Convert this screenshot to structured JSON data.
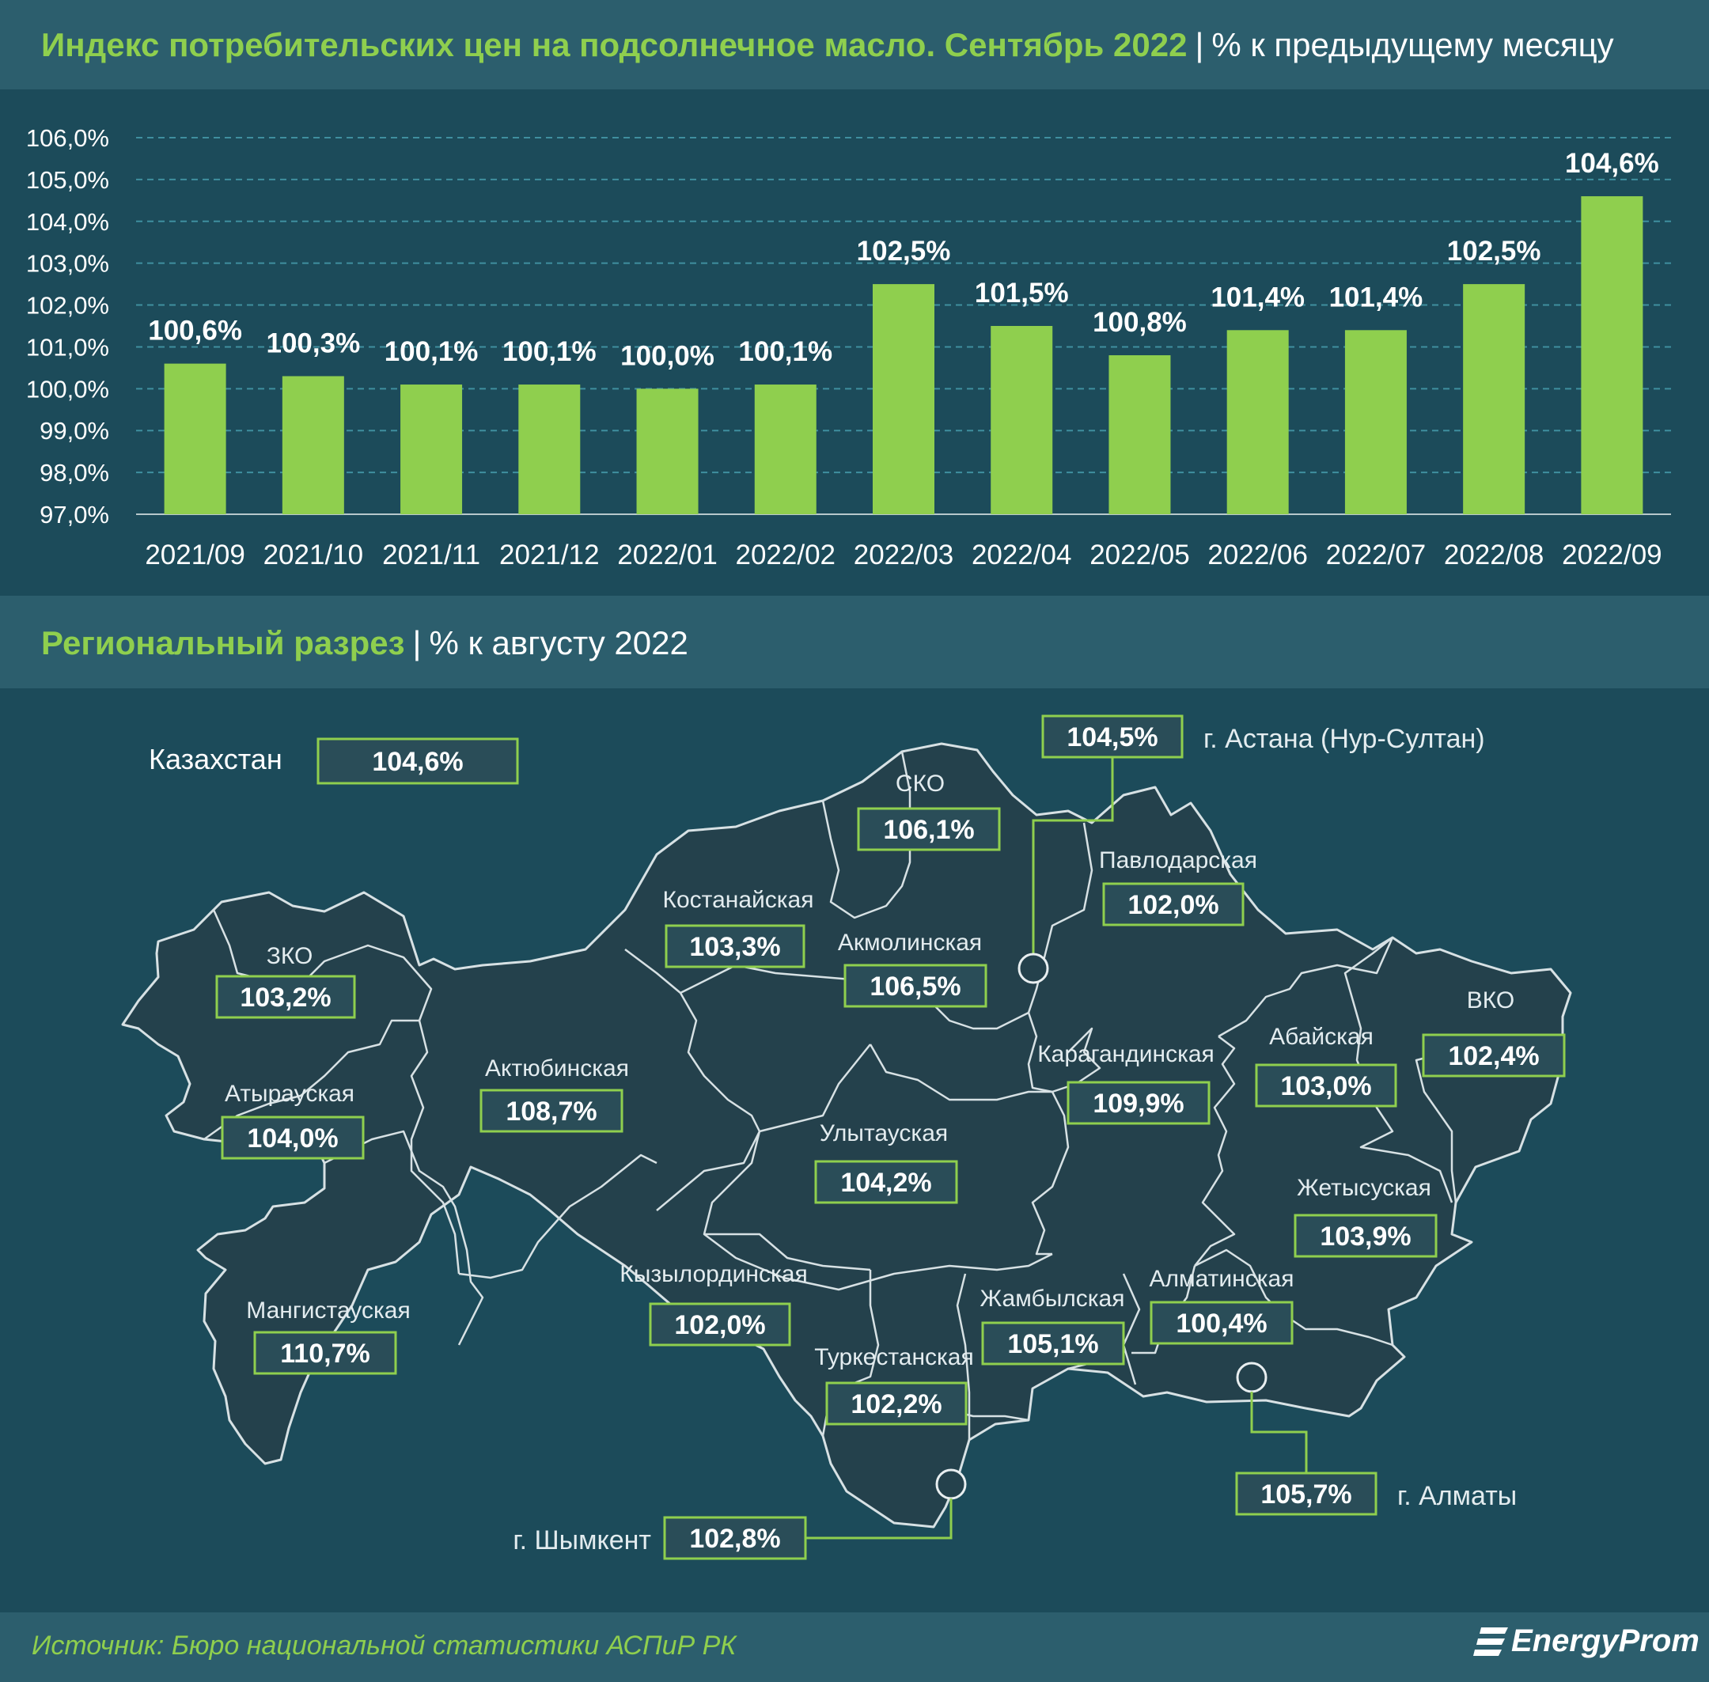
{
  "header": {
    "title": "Индекс потребительских цен на подсолнечное масло. Сентябрь 2022",
    "separator": "|",
    "subtitle": "% к предыдущему месяцу"
  },
  "colors": {
    "background": "#1c4b5a",
    "band": "#2c5e6d",
    "accent_green": "#8fcf4e",
    "bar": "#8fcf4e",
    "map_fill": "#24414c",
    "map_stroke": "#d7e1e4",
    "box_fill": "#2a4d58",
    "box_stroke": "#8fcf4e"
  },
  "chart_data": {
    "type": "bar",
    "title": "Индекс потребительских цен на подсолнечное масло. Сентябрь 2022",
    "subtitle": "% к предыдущему месяцу",
    "categories": [
      "2021/09",
      "2021/10",
      "2021/11",
      "2021/12",
      "2022/01",
      "2022/02",
      "2022/03",
      "2022/04",
      "2022/05",
      "2022/06",
      "2022/07",
      "2022/08",
      "2022/09"
    ],
    "values": [
      100.6,
      100.3,
      100.1,
      100.1,
      100.0,
      100.1,
      102.5,
      101.5,
      100.8,
      101.4,
      101.4,
      102.5,
      104.6
    ],
    "data_labels": [
      "100,6%",
      "100,3%",
      "100,1%",
      "100,1%",
      "100,0%",
      "100,1%",
      "102,5%",
      "101,5%",
      "100,8%",
      "101,4%",
      "101,4%",
      "102,5%",
      "104,6%"
    ],
    "ylim": [
      97,
      106
    ],
    "yticks": [
      97,
      98,
      99,
      100,
      101,
      102,
      103,
      104,
      105,
      106
    ],
    "ytick_labels": [
      "97,0%",
      "98,0%",
      "99,0%",
      "100,0%",
      "101,0%",
      "102,0%",
      "103,0%",
      "104,0%",
      "105,0%",
      "106,0%"
    ],
    "grid": true,
    "legend": "none"
  },
  "regional": {
    "title": "Региональный разрез",
    "separator": "|",
    "subtitle": "% к августу 2022",
    "kazakhstan": {
      "name": "Казахстан",
      "value": "104,6%"
    },
    "regions": [
      {
        "name": "ЗКО",
        "value": "103,2%"
      },
      {
        "name": "Атырауская",
        "value": "104,0%"
      },
      {
        "name": "Мангистауская",
        "value": "110,7%"
      },
      {
        "name": "Актюбинская",
        "value": "108,7%"
      },
      {
        "name": "Костанайская",
        "value": "103,3%"
      },
      {
        "name": "СКО",
        "value": "106,1%"
      },
      {
        "name": "Акмолинская",
        "value": "106,5%"
      },
      {
        "name": "Павлодарская",
        "value": "102,0%"
      },
      {
        "name": "Карагандинская",
        "value": "109,9%"
      },
      {
        "name": "Улытауская",
        "value": "104,2%"
      },
      {
        "name": "Абайская",
        "value": "103,0%"
      },
      {
        "name": "ВКО",
        "value": "102,4%"
      },
      {
        "name": "Жетысуская",
        "value": "103,9%"
      },
      {
        "name": "Кызылординская",
        "value": "102,0%"
      },
      {
        "name": "Туркестанская",
        "value": "102,2%"
      },
      {
        "name": "Жамбылская",
        "value": "105,1%"
      },
      {
        "name": "Алматинская",
        "value": "100,4%"
      }
    ],
    "cities": [
      {
        "name": "г. Астана (Нур-Султан)",
        "value": "104,5%"
      },
      {
        "name": "г. Алматы",
        "value": "105,7%"
      },
      {
        "name": "г. Шымкент",
        "value": "102,8%"
      }
    ]
  },
  "footer": {
    "source": "Источник: Бюро национальной статистики АСПиР РК",
    "logo": "EnergyProm"
  }
}
